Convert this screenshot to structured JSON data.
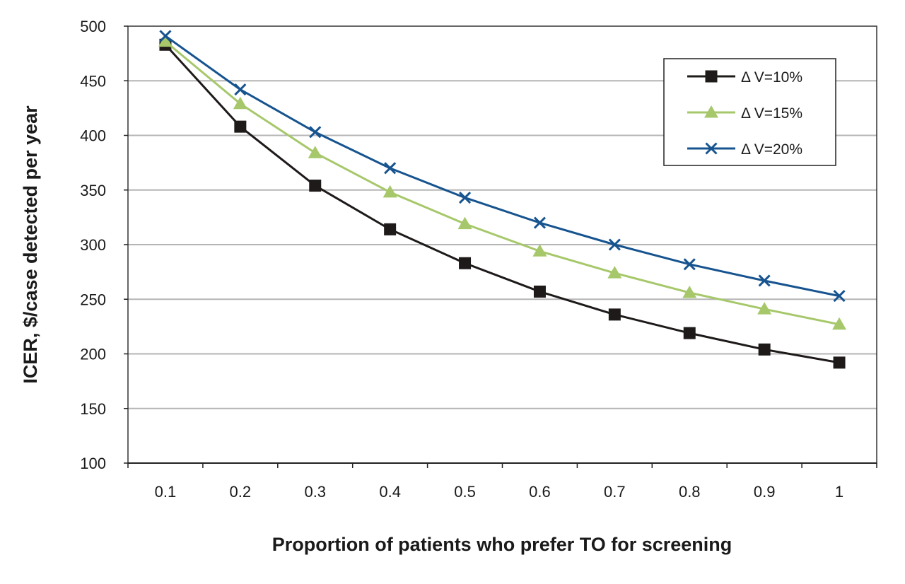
{
  "chart_data": {
    "type": "line",
    "title": "",
    "xlabel": "Proportion of patients who prefer TO for screening",
    "ylabel": "ICER, $/case detected per year",
    "categories": [
      "0.1",
      "0.2",
      "0.3",
      "0.4",
      "0.5",
      "0.6",
      "0.7",
      "0.8",
      "0.9",
      "1"
    ],
    "ylim": [
      100,
      500
    ],
    "yticks": [
      "100",
      "150",
      "200",
      "250",
      "300",
      "350",
      "400",
      "450",
      "500"
    ],
    "grid": "horizontal",
    "legend_position": "top-right",
    "series": [
      {
        "name": "Δ V=10%",
        "marker": "square",
        "color": "#1f1a1a",
        "values": [
          483,
          408,
          354,
          314,
          283,
          257,
          236,
          219,
          204,
          192
        ]
      },
      {
        "name": "Δ V=15%",
        "marker": "triangle",
        "color": "#a6c86a",
        "values": [
          486,
          429,
          384,
          348,
          319,
          294,
          274,
          256,
          241,
          227
        ]
      },
      {
        "name": "Δ V=20%",
        "marker": "x",
        "color": "#17548f",
        "values": [
          491,
          442,
          403,
          370,
          343,
          320,
          300,
          282,
          267,
          253
        ]
      }
    ]
  }
}
